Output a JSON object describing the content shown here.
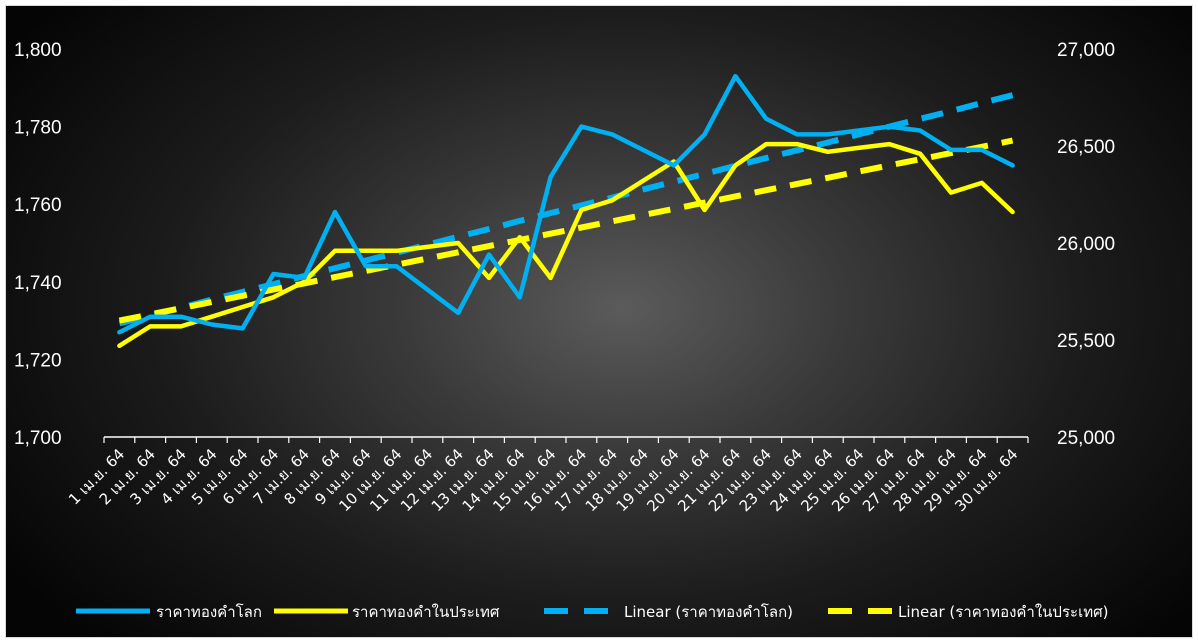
{
  "chart_data": {
    "type": "line",
    "categories": [
      "1 เม.ย. 64",
      "2 เม.ย. 64",
      "3 เม.ย. 64",
      "4 เม.ย. 64",
      "5 เม.ย. 64",
      "6 เม.ย. 64",
      "7 เม.ย. 64",
      "8 เม.ย. 64",
      "9 เม.ย. 64",
      "10 เม.ย. 64",
      "11 เม.ย. 64",
      "12 เม.ย. 64",
      "13 เม.ย. 64",
      "14 เม.ย. 64",
      "15 เม.ย. 64",
      "16 เม.ย. 64",
      "17 เม.ย. 64",
      "18 เม.ย. 64",
      "19 เม.ย. 64",
      "20 เม.ย. 64",
      "21 เม.ย. 64",
      "22 เม.ย. 64",
      "23 เม.ย. 64",
      "24 เม.ย. 64",
      "25 เม.ย. 64",
      "26 เม.ย. 64",
      "27 เม.ย. 64",
      "28 เม.ย. 64",
      "29 เม.ย. 64",
      "30 เม.ย. 64"
    ],
    "y_left": {
      "min": 1700,
      "max": 1800,
      "ticks": [
        "1,700",
        "1,720",
        "1,740",
        "1,760",
        "1,780",
        "1,800"
      ]
    },
    "y_right": {
      "min": 25000,
      "max": 27000,
      "ticks": [
        "25,000",
        "25,500",
        "26,000",
        "26,500",
        "27,000"
      ]
    },
    "series": [
      {
        "name": "ราคาทองคำโลก",
        "axis": "left",
        "color": "#00b0f0",
        "style": "solid",
        "values": [
          1727,
          1731,
          1731,
          1729,
          1728,
          1742,
          1741,
          1758,
          1744,
          1744,
          1738,
          1732,
          1747,
          1736,
          1767,
          1780,
          1778,
          1774,
          1770,
          1778,
          1793,
          1782,
          1778,
          1778,
          1779,
          1780,
          1779,
          1774,
          1774,
          1770
        ]
      },
      {
        "name": "ราคาทองคำในประเทศ",
        "axis": "right",
        "color": "#ffff00",
        "style": "solid",
        "values": [
          25470,
          25570,
          25570,
          25620,
          25670,
          25720,
          25800,
          25960,
          25960,
          25960,
          25980,
          26000,
          25820,
          26030,
          25820,
          26170,
          26220,
          26320,
          26420,
          26170,
          26400,
          26510,
          26510,
          26470,
          26490,
          26510,
          26460,
          26260,
          26310,
          26160
        ]
      },
      {
        "name": "Linear (ราคาทองคำโลก)",
        "axis": "left",
        "color": "#00b0f0",
        "style": "dashed",
        "values": [
          1729.3,
          1731.3,
          1733.3,
          1735.4,
          1737.4,
          1739.4,
          1741.5,
          1743.5,
          1745.5,
          1747.5,
          1749.6,
          1751.6,
          1753.6,
          1755.7,
          1757.7,
          1759.7,
          1761.7,
          1763.8,
          1765.8,
          1767.8,
          1769.9,
          1771.9,
          1773.9,
          1775.9,
          1778.0,
          1780.0,
          1782.0,
          1784.0,
          1786.1,
          1788.1
        ]
      },
      {
        "name": "Linear (ราคาทองคำในประเทศ)",
        "axis": "right",
        "color": "#ffff00",
        "style": "dashed",
        "values": [
          25600,
          25632,
          25664,
          25696,
          25728,
          25760,
          25792,
          25824,
          25856,
          25888,
          25920,
          25952,
          25984,
          26016,
          26048,
          26080,
          26112,
          26144,
          26176,
          26208,
          26240,
          26272,
          26304,
          26336,
          26368,
          26400,
          26432,
          26464,
          26496,
          26528
        ]
      }
    ],
    "legend_position": "bottom",
    "grid": false
  }
}
